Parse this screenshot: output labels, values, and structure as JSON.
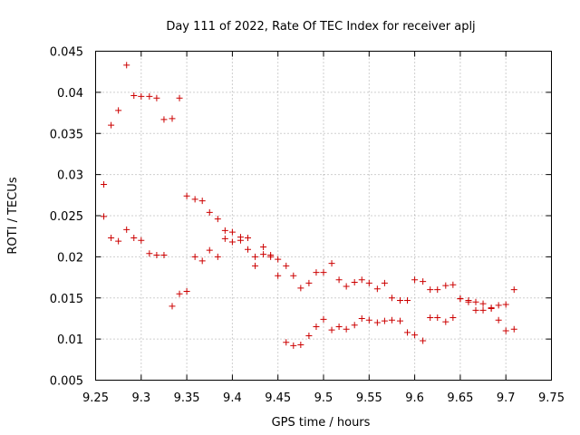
{
  "chart_data": {
    "type": "scatter",
    "title": "Day 111 of 2022, Rate Of TEC Index for receiver aplj",
    "xlabel": "GPS time / hours",
    "ylabel": "ROTI / TECUs",
    "xlim": [
      9.25,
      9.75
    ],
    "ylim": [
      0.005,
      0.045
    ],
    "xticks": [
      9.25,
      9.3,
      9.35,
      9.4,
      9.45,
      9.5,
      9.55,
      9.6,
      9.65,
      9.7,
      9.75
    ],
    "xtick_labels": [
      "9.25",
      "9.3",
      "9.35",
      "9.4",
      "9.45",
      "9.5",
      "9.55",
      "9.6",
      "9.65",
      "9.7",
      "9.75"
    ],
    "yticks": [
      0.005,
      0.01,
      0.015,
      0.02,
      0.025,
      0.03,
      0.035,
      0.04,
      0.045
    ],
    "ytick_labels": [
      "0.005",
      "0.01",
      "0.015",
      "0.02",
      "0.025",
      "0.03",
      "0.035",
      "0.04",
      "0.045"
    ],
    "grid": true,
    "marker": "+",
    "color": "#cc0000",
    "series": [
      {
        "name": "ROTI",
        "x": [
          9.259,
          9.259,
          9.267,
          9.267,
          9.275,
          9.275,
          9.284,
          9.284,
          9.292,
          9.292,
          9.3,
          9.3,
          9.309,
          9.309,
          9.317,
          9.317,
          9.325,
          9.325,
          9.334,
          9.334,
          9.342,
          9.342,
          9.35,
          9.35,
          9.359,
          9.359,
          9.367,
          9.367,
          9.375,
          9.375,
          9.384,
          9.384,
          9.392,
          9.392,
          9.4,
          9.4,
          9.409,
          9.409,
          9.417,
          9.417,
          9.425,
          9.425,
          9.434,
          9.434,
          9.442,
          9.442,
          9.45,
          9.45,
          9.459,
          9.459,
          9.467,
          9.467,
          9.475,
          9.475,
          9.484,
          9.484,
          9.492,
          9.492,
          9.5,
          9.5,
          9.509,
          9.509,
          9.517,
          9.517,
          9.525,
          9.525,
          9.534,
          9.534,
          9.542,
          9.542,
          9.55,
          9.55,
          9.559,
          9.559,
          9.567,
          9.567,
          9.575,
          9.575,
          9.584,
          9.584,
          9.592,
          9.592,
          9.6,
          9.6,
          9.609,
          9.609,
          9.617,
          9.617,
          9.625,
          9.625,
          9.634,
          9.634,
          9.642,
          9.642,
          9.65,
          9.65,
          9.659,
          9.659,
          9.667,
          9.667,
          9.675,
          9.675,
          9.684,
          9.684,
          9.692,
          9.692,
          9.7,
          9.7,
          9.709,
          9.709
        ],
        "y": [
          0.0288,
          0.0249,
          0.036,
          0.0223,
          0.0378,
          0.0219,
          0.0433,
          0.0233,
          0.0396,
          0.0223,
          0.0395,
          0.022,
          0.0395,
          0.0204,
          0.0393,
          0.0202,
          0.0367,
          0.0202,
          0.0368,
          0.014,
          0.0393,
          0.0155,
          0.0274,
          0.0158,
          0.027,
          0.02,
          0.0268,
          0.0195,
          0.0254,
          0.0208,
          0.0246,
          0.02,
          0.0232,
          0.0222,
          0.023,
          0.0218,
          0.0224,
          0.022,
          0.0223,
          0.0209,
          0.02,
          0.0189,
          0.0212,
          0.0203,
          0.0202,
          0.02,
          0.0197,
          0.0177,
          0.0189,
          0.0096,
          0.0177,
          0.0092,
          0.0162,
          0.0093,
          0.0168,
          0.0104,
          0.0181,
          0.0115,
          0.0181,
          0.0124,
          0.0192,
          0.0111,
          0.0172,
          0.0115,
          0.0164,
          0.0112,
          0.0169,
          0.0117,
          0.0172,
          0.0125,
          0.0168,
          0.0123,
          0.0161,
          0.012,
          0.0168,
          0.0122,
          0.015,
          0.0123,
          0.0147,
          0.0122,
          0.0147,
          0.0108,
          0.0172,
          0.0105,
          0.017,
          0.0098,
          0.016,
          0.0126,
          0.016,
          0.0126,
          0.0165,
          0.0121,
          0.0166,
          0.0126,
          0.0149,
          0.0149,
          0.0145,
          0.0147,
          0.0145,
          0.0135,
          0.0143,
          0.0135,
          0.0137,
          0.0138,
          0.0141,
          0.0123,
          0.0142,
          0.011,
          0.016,
          0.0112
        ]
      }
    ]
  }
}
